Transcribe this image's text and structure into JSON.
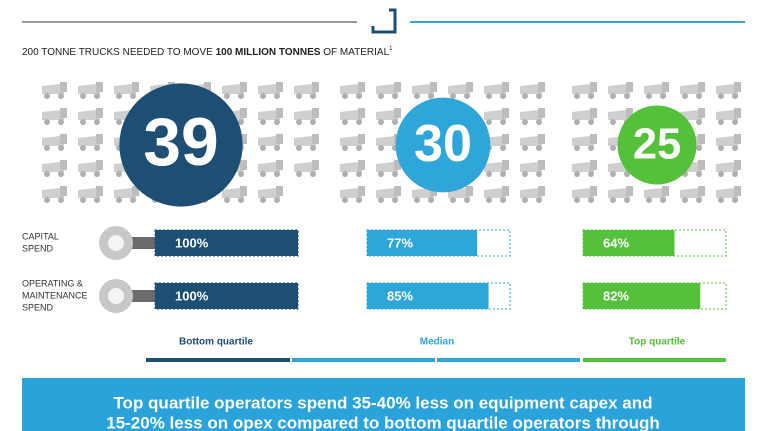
{
  "header": {
    "title_parts": [
      "200 TONNE TRUCKS NEEDED TO MOVE ",
      "100 MILLION TONNES",
      " OF MATERIAL"
    ],
    "footnote": "1"
  },
  "groups": [
    {
      "label": "Bottom quartile",
      "trucks": 39,
      "color": "#1d4e74"
    },
    {
      "label": "Median",
      "trucks": 30,
      "color": "#2fa6d9"
    },
    {
      "label": "Top quartile",
      "trucks": 25,
      "color": "#55c13a"
    }
  ],
  "metrics": [
    {
      "label_lines": [
        "CAPITAL",
        "SPEND"
      ],
      "values": [
        100,
        77,
        64
      ],
      "value_labels": [
        "100%",
        "77%",
        "64%"
      ]
    },
    {
      "label_lines": [
        "OPERATING &",
        "MAINTENANCE",
        "SPEND"
      ],
      "values": [
        100,
        85,
        82
      ],
      "value_labels": [
        "100%",
        "85%",
        "82%"
      ]
    }
  ],
  "banner": {
    "lines": [
      "Top quartile operators spend 35-40% less on equipment capex and",
      "15-20% less on opex compared to bottom quartile operators through"
    ]
  }
}
